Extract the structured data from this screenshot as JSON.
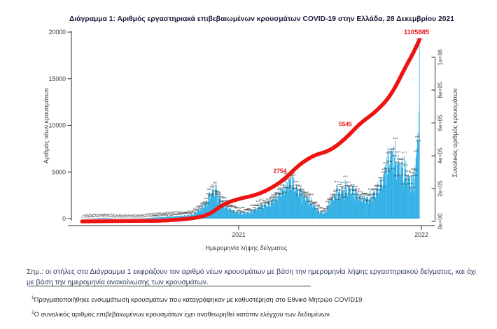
{
  "colors": {
    "bar": "#29ace4",
    "line": "#ee1313",
    "annotation": "#ee1313",
    "title": "#1b1b3a",
    "note": "#31405f",
    "axis": "#2b2b2b",
    "tick_text": "#3a3a3a"
  },
  "figure": {
    "title": "Διάγραμμα 1: Αριθμός εργαστηριακά επιβεβαιωμένων κρουσμάτων COVID-19 στην Ελλάδα, 28 Δεκεμβρίου 2021"
  },
  "note": {
    "line1": "Σημ.: οι στήλες στο Διάγραμμα 1 εκφράζουν τον αριθμό νέων κρουσμάτων με βάση την ημερομηνία λήψης εργαστηριακού δείγματος, και όχι",
    "line2": "με βάση την ημερομηνία ανακοίνωσης των κρουσμάτων."
  },
  "footnotes": {
    "fn1_mark": "1",
    "fn1_text": "Πραγματοποιήθηκε ενσωμάτωση κρουσμάτων που καταγράφηκαν με καθυστέρηση στο Εθνικό Μητρώο COVID19",
    "fn2_mark": "2",
    "fn2_text": "Ο συνολικός αριθμός επιβεβαιωμένων κρουσμάτων έχει αναθεωρηθεί κατόπιν ελέγχου των δεδομένων."
  },
  "chart_data": {
    "type": "combo",
    "title": "Διάγραμμα 1: Αριθμός εργαστηριακά επιβεβαιωμένων κρουσμάτων COVID-19 στην Ελλάδα, 28 Δεκεμβρίου 2021",
    "start_date": "2020-02-23",
    "days": 674,
    "x_axis": {
      "label": "Ημερομηνία λήψης δείγματος",
      "ticks": [
        "2021",
        "2022"
      ],
      "tick_days": [
        313,
        678
      ]
    },
    "y_left": {
      "label": "Αριθμός νέων κρουσμάτων",
      "ticks": [
        0,
        5000,
        10000,
        15000,
        20000
      ],
      "lim": [
        0,
        20000
      ]
    },
    "y_right": {
      "label": "Συνολικός αριθμός κρουσμάτων",
      "ticks": [
        "0e+00",
        "2e+05",
        "4e+05",
        "6e+05",
        "8e+05",
        "1e+06"
      ],
      "tick_values": [
        0,
        200000,
        400000,
        600000,
        800000,
        1000000
      ],
      "lim": [
        0,
        1105885
      ]
    },
    "series": [
      {
        "name": "daily_new_cases",
        "type": "bar",
        "unit": "cases/day by sampling date",
        "anchors": [
          [
            0,
            5
          ],
          [
            30,
            60
          ],
          [
            45,
            95
          ],
          [
            70,
            18
          ],
          [
            120,
            28
          ],
          [
            160,
            190
          ],
          [
            190,
            290
          ],
          [
            220,
            430
          ],
          [
            245,
            1500
          ],
          [
            258,
            2900
          ],
          [
            265,
            3350
          ],
          [
            280,
            1900
          ],
          [
            300,
            900
          ],
          [
            320,
            640
          ],
          [
            340,
            820
          ],
          [
            355,
            1400
          ],
          [
            372,
            1650
          ],
          [
            385,
            2300
          ],
          [
            400,
            3250
          ],
          [
            410,
            3950
          ],
          [
            418,
            4350
          ],
          [
            430,
            3300
          ],
          [
            445,
            2600
          ],
          [
            460,
            1700
          ],
          [
            475,
            750
          ],
          [
            485,
            620
          ],
          [
            495,
            1850
          ],
          [
            505,
            2750
          ],
          [
            515,
            3100
          ],
          [
            530,
            3450
          ],
          [
            545,
            3100
          ],
          [
            555,
            2450
          ],
          [
            565,
            2250
          ],
          [
            575,
            2350
          ],
          [
            590,
            3250
          ],
          [
            600,
            4300
          ],
          [
            610,
            6300
          ],
          [
            617,
            7300
          ],
          [
            625,
            6800
          ],
          [
            635,
            6000
          ],
          [
            647,
            5300
          ],
          [
            655,
            4300
          ],
          [
            661,
            4200
          ],
          [
            666,
            5600
          ],
          [
            669,
            7600
          ],
          [
            671,
            9200
          ],
          [
            672,
            8200
          ],
          [
            673,
            11500
          ],
          [
            674,
            19000
          ]
        ]
      },
      {
        "name": "cumulative_confirmed_cases",
        "type": "line",
        "points": [
          [
            0,
            0
          ],
          [
            60,
            1800
          ],
          [
            99,
            2900
          ],
          [
            160,
            4400
          ],
          [
            191,
            10500
          ],
          [
            221,
            18500
          ],
          [
            252,
            37000
          ],
          [
            282,
            105000
          ],
          [
            313,
            138000
          ],
          [
            344,
            158000
          ],
          [
            372,
            192000
          ],
          [
            403,
            252000
          ],
          [
            433,
            345000
          ],
          [
            464,
            405000
          ],
          [
            494,
            428000
          ],
          [
            525,
            500000
          ],
          [
            556,
            600000
          ],
          [
            586,
            665000
          ],
          [
            617,
            765000
          ],
          [
            647,
            945000
          ],
          [
            661,
            1020000
          ],
          [
            674,
            1105885
          ]
        ]
      }
    ],
    "annotations": [
      {
        "text": "2754",
        "day": 410,
        "value": 275400,
        "note": "trailing digits occluded by line"
      },
      {
        "text": "5545",
        "day": 542,
        "value": 554500,
        "note": "trailing digits occluded by line"
      },
      {
        "text": "1105885",
        "day": 674,
        "value": 1105885
      }
    ],
    "legend": "none",
    "grid": false
  }
}
